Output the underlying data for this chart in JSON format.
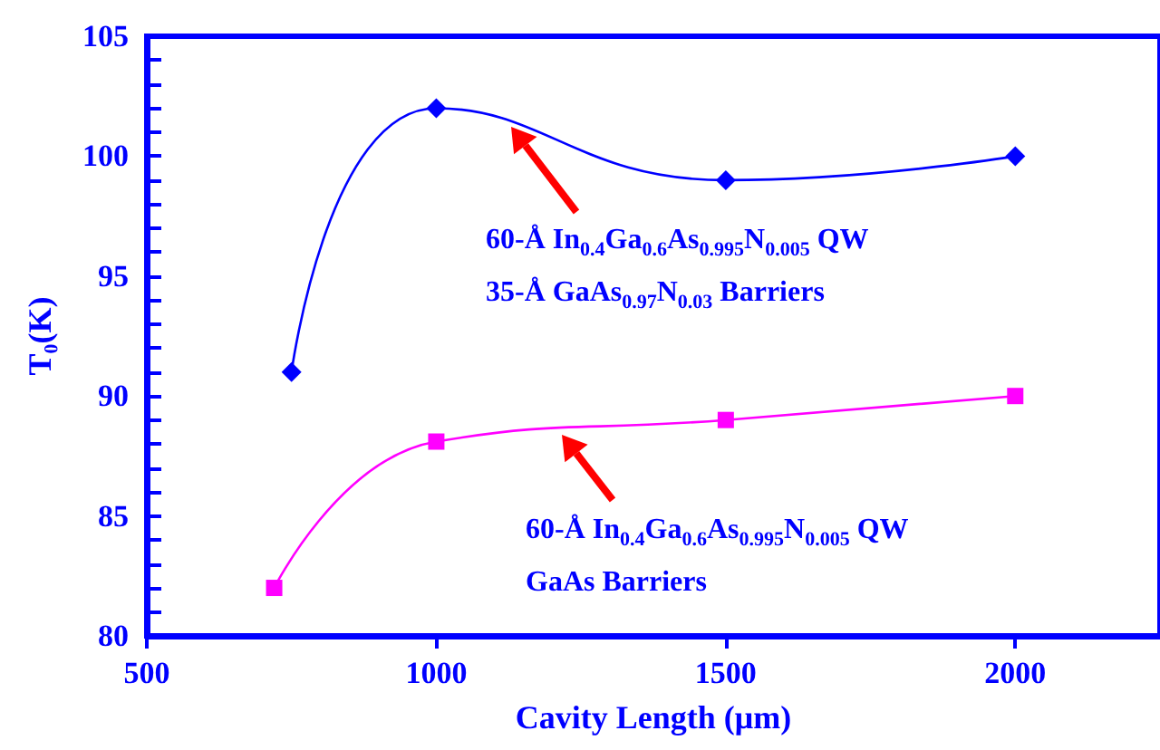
{
  "chart_data": {
    "type": "line",
    "xlabel": "Cavity Length (μm)",
    "ylabel": "T₀(K)",
    "xlim": [
      500,
      2250
    ],
    "xticks": [
      500,
      1000,
      1500,
      2000
    ],
    "ylim": [
      80,
      105
    ],
    "yticks": [
      80,
      {
        "value": 81,
        "label": null
      },
      {
        "value": 82,
        "label": null
      },
      {
        "value": 83,
        "label": null
      },
      {
        "value": 84,
        "label": null
      },
      85,
      {
        "value": 86,
        "label": null
      },
      {
        "value": 87,
        "label": null
      },
      {
        "value": 88,
        "label": null
      },
      {
        "value": 89,
        "label": null
      },
      90,
      {
        "value": 91,
        "label": null
      },
      {
        "value": 92,
        "label": null
      },
      {
        "value": 93,
        "label": null
      },
      {
        "value": 94,
        "label": null
      },
      95,
      {
        "value": 96,
        "label": null
      },
      {
        "value": 97,
        "label": null
      },
      {
        "value": 98,
        "label": null
      },
      {
        "value": 99,
        "label": null
      },
      100,
      {
        "value": 101,
        "label": null
      },
      {
        "value": 102,
        "label": null
      },
      {
        "value": 103,
        "label": null
      },
      {
        "value": 104,
        "label": null
      },
      105
    ],
    "grid": false,
    "line_style": "solid",
    "series": [
      {
        "color": "#0000ff",
        "marker": "diamond",
        "x": [
          750,
          1000,
          1500,
          2000
        ],
        "values": [
          91,
          102,
          99,
          100
        ]
      },
      {
        "color": "#ff00ff",
        "marker": "square",
        "x": [
          720,
          1000,
          1500,
          2000
        ],
        "values": [
          82,
          88.1,
          89,
          90
        ]
      }
    ],
    "annotations": [
      "60-Å In$_{0.4}$Ga$_{0.6}$As$_{0.995}$N$_{0.005}$ QW",
      "35-Å GaAs$_{0.97}$N$_{0.03}$ Barriers",
      "60-Å In$_{0.4}$Ga$_{0.6}$As$_{0.995}$N$_{0.005}$ QW",
      "GaAs Barriers"
    ]
  }
}
